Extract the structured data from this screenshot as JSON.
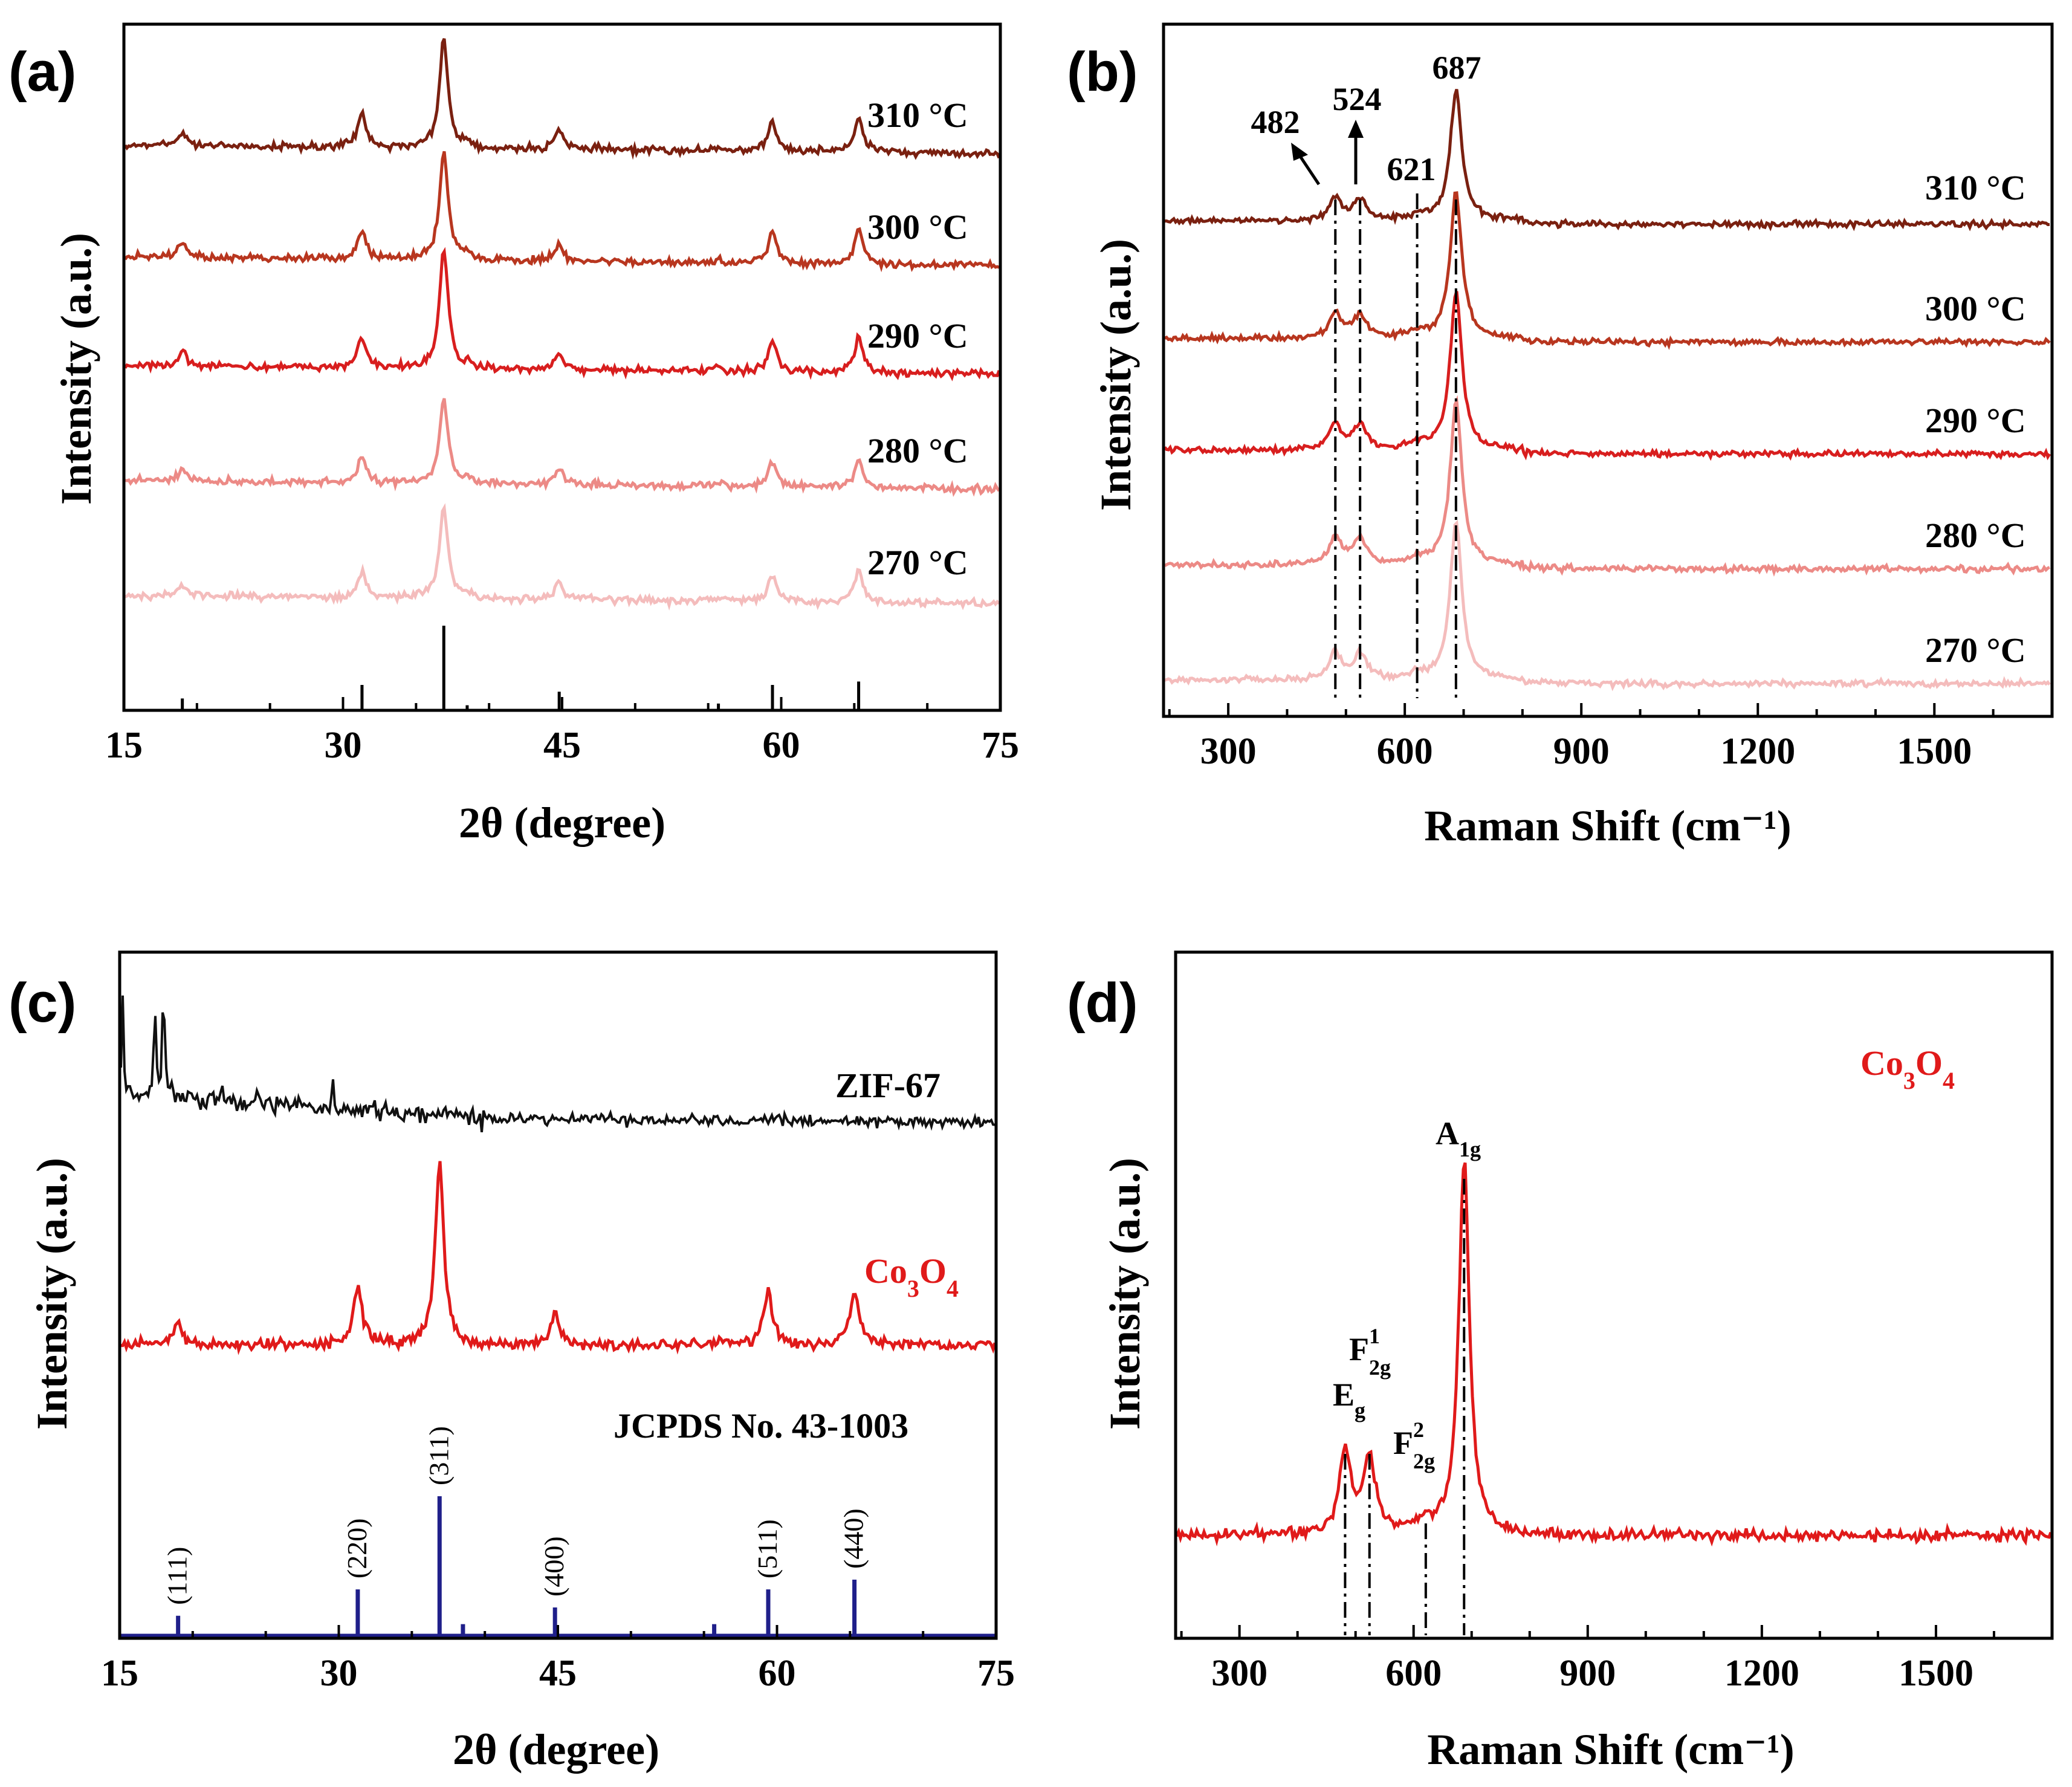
{
  "colors": {
    "t310": "#7a2010",
    "t300": "#b8361f",
    "t290": "#d81e1e",
    "t280": "#ec8a86",
    "t270": "#f4bcbc",
    "zif": "#111111",
    "co3o4": "#e01a1a",
    "jcpds": "#1f1f8a"
  },
  "chart_data": [
    {
      "panel": "(a)",
      "type": "line",
      "xlabel": "2θ (degree)",
      "ylabel": "Intensity (a.u.)",
      "xlim": [
        15,
        75
      ],
      "xticks": [
        "15",
        "30",
        "45",
        "60",
        "75"
      ],
      "peaks_2theta": [
        19.0,
        31.3,
        36.9,
        44.8,
        59.4,
        65.3
      ],
      "series": [
        {
          "name": "310 °C",
          "color_key": "t310",
          "offset": 4,
          "heights": [
            0.12,
            0.28,
            0.95,
            0.16,
            0.26,
            0.3
          ]
        },
        {
          "name": "300 °C",
          "color_key": "t300",
          "offset": 3,
          "heights": [
            0.12,
            0.25,
            0.95,
            0.14,
            0.28,
            0.3
          ]
        },
        {
          "name": "290 °C",
          "color_key": "t290",
          "offset": 2,
          "heights": [
            0.13,
            0.27,
            1.05,
            0.15,
            0.28,
            0.3
          ]
        },
        {
          "name": "280 °C",
          "color_key": "t280",
          "offset": 1,
          "heights": [
            0.1,
            0.22,
            0.75,
            0.14,
            0.22,
            0.22
          ]
        },
        {
          "name": "270 °C",
          "color_key": "t270",
          "offset": 0,
          "heights": [
            0.1,
            0.22,
            0.8,
            0.14,
            0.22,
            0.28
          ]
        }
      ],
      "reference_bars": [
        {
          "x": 19.0,
          "h": 0.14
        },
        {
          "x": 31.3,
          "h": 0.3
        },
        {
          "x": 36.9,
          "h": 1.0
        },
        {
          "x": 38.5,
          "h": 0.06
        },
        {
          "x": 44.8,
          "h": 0.22
        },
        {
          "x": 55.7,
          "h": 0.08
        },
        {
          "x": 59.4,
          "h": 0.3
        },
        {
          "x": 65.3,
          "h": 0.34
        }
      ]
    },
    {
      "panel": "(b)",
      "type": "line",
      "xlabel": "Raman Shift (cm⁻¹)",
      "ylabel": "Intensity (a.u.)",
      "xlim": [
        190,
        1700
      ],
      "xticks": [
        "300",
        "600",
        "900",
        "1200",
        "1500"
      ],
      "peak_annotations": [
        "482",
        "524",
        "621",
        "687"
      ],
      "guide_lines": [
        482,
        524,
        621,
        687
      ],
      "series": [
        {
          "name": "310 °C",
          "color_key": "t310",
          "offset": 4
        },
        {
          "name": "300 °C",
          "color_key": "t300",
          "offset": 3
        },
        {
          "name": "290 °C",
          "color_key": "t290",
          "offset": 2
        },
        {
          "name": "280 °C",
          "color_key": "t280",
          "offset": 1
        },
        {
          "name": "270 °C",
          "color_key": "t270",
          "offset": 0
        }
      ]
    },
    {
      "panel": "(c)",
      "type": "line",
      "xlabel": "2θ (degree)",
      "ylabel": "Intensity (a.u.)",
      "xlim": [
        15,
        75
      ],
      "xticks": [
        "15",
        "30",
        "45",
        "60",
        "75"
      ],
      "series": [
        {
          "name": "ZIF-67",
          "color_key": "zif"
        },
        {
          "name": "Co3O4",
          "color_key": "co3o4",
          "peaks_2theta": [
            19.0,
            31.3,
            36.9,
            44.8,
            59.4,
            65.3
          ],
          "heights": [
            0.12,
            0.33,
            1.0,
            0.16,
            0.3,
            0.3
          ]
        }
      ],
      "reference": {
        "name": "JCPDS No. 43-1003",
        "bars": [
          {
            "x": 19.0,
            "h": 0.14,
            "hkl": "(111)"
          },
          {
            "x": 31.3,
            "h": 0.33,
            "hkl": "(220)"
          },
          {
            "x": 36.9,
            "h": 1.0,
            "hkl": "(311)"
          },
          {
            "x": 38.5,
            "h": 0.08,
            "hkl": ""
          },
          {
            "x": 44.8,
            "h": 0.2,
            "hkl": "(400)"
          },
          {
            "x": 55.7,
            "h": 0.08,
            "hkl": ""
          },
          {
            "x": 59.4,
            "h": 0.33,
            "hkl": "(511)"
          },
          {
            "x": 65.3,
            "h": 0.4,
            "hkl": "(440)"
          }
        ]
      }
    },
    {
      "panel": "(d)",
      "type": "line",
      "xlabel": "Raman Shift (cm⁻¹)",
      "ylabel": "Intensity (a.u.)",
      "xlim": [
        190,
        1700
      ],
      "xticks": [
        "300",
        "600",
        "900",
        "1200",
        "1500"
      ],
      "series": [
        {
          "name": "Co3O4",
          "color_key": "co3o4"
        }
      ],
      "peaks": [
        {
          "x": 482,
          "label": "E",
          "sub": "g",
          "sup": ""
        },
        {
          "x": 524,
          "label": "F",
          "sub": "2g",
          "sup": "1"
        },
        {
          "x": 621,
          "label": "F",
          "sub": "2g",
          "sup": "2"
        },
        {
          "x": 687,
          "label": "A",
          "sub": "1g",
          "sup": ""
        }
      ],
      "guide_lines": [
        482,
        524,
        621,
        687
      ]
    }
  ]
}
